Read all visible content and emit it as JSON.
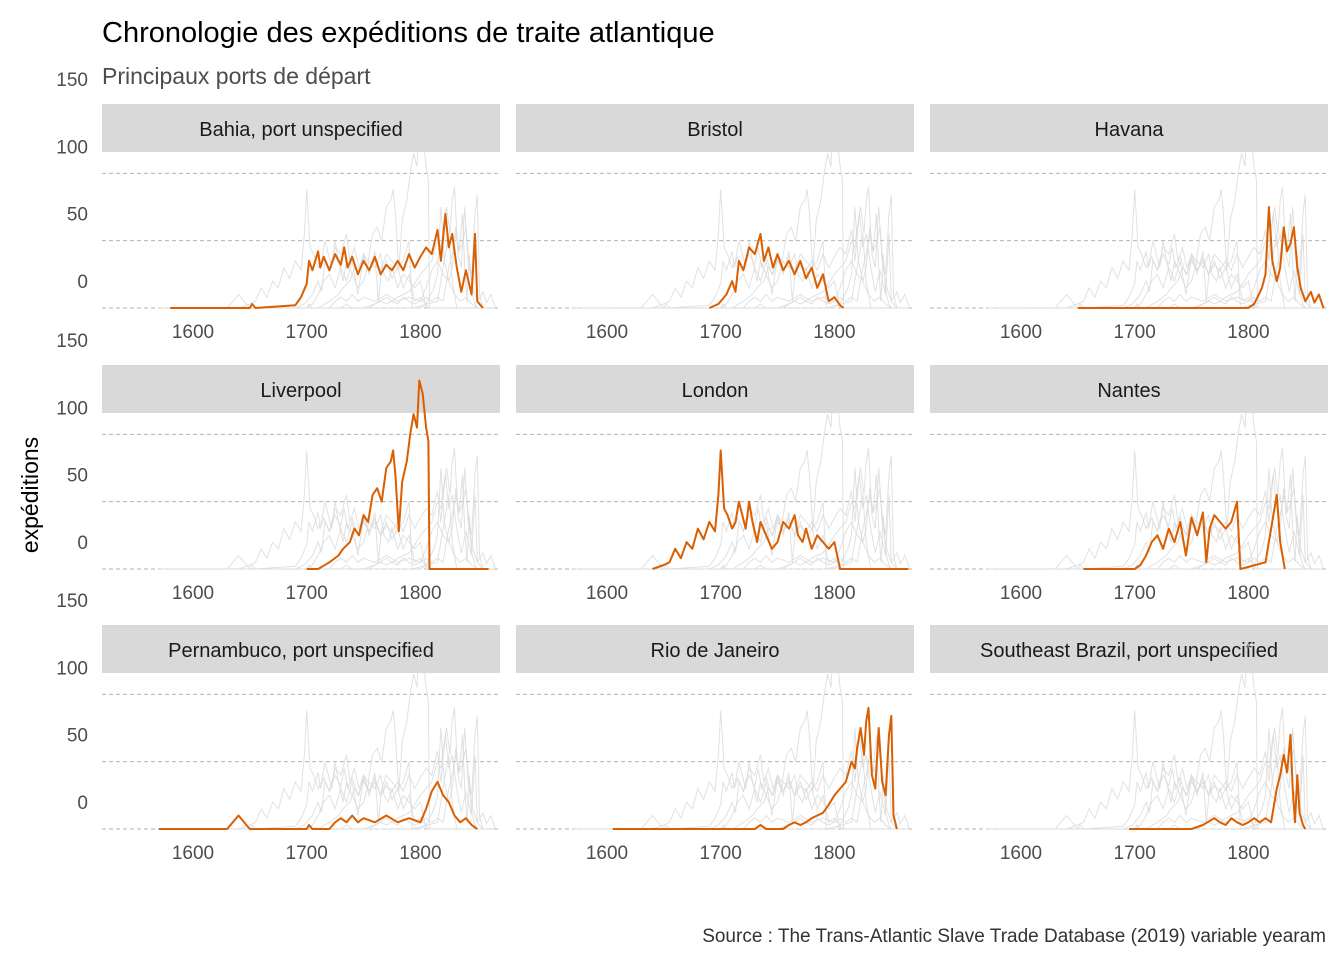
{
  "chart_data": {
    "type": "line",
    "title": "Chronologie des expéditions de traite atlantique",
    "subtitle": "Principaux ports de départ",
    "ylabel": "expéditions",
    "xlabel": "",
    "caption": "Source : The Trans-Atlantic Slave Trade Database (2019) variable yearam",
    "xlim": [
      1520,
      1870
    ],
    "ylim": [
      0,
      150
    ],
    "x_ticks": [
      1600,
      1700,
      1800
    ],
    "y_ticks": [
      0,
      50,
      100,
      150
    ],
    "grid": "dashed horizontal",
    "colors": {
      "highlight": "#d95f02",
      "context": "#d9d9d9",
      "strip": "#d9d9d9"
    },
    "facets": [
      {
        "name": "Bahia, port unspecified",
        "points": [
          [
            1580,
            0
          ],
          [
            1650,
            0
          ],
          [
            1652,
            3
          ],
          [
            1655,
            0
          ],
          [
            1690,
            2
          ],
          [
            1695,
            8
          ],
          [
            1700,
            18
          ],
          [
            1702,
            35
          ],
          [
            1705,
            28
          ],
          [
            1710,
            42
          ],
          [
            1712,
            30
          ],
          [
            1715,
            38
          ],
          [
            1720,
            28
          ],
          [
            1725,
            40
          ],
          [
            1730,
            32
          ],
          [
            1733,
            45
          ],
          [
            1736,
            30
          ],
          [
            1740,
            38
          ],
          [
            1745,
            25
          ],
          [
            1750,
            35
          ],
          [
            1755,
            28
          ],
          [
            1760,
            38
          ],
          [
            1765,
            25
          ],
          [
            1770,
            32
          ],
          [
            1775,
            28
          ],
          [
            1780,
            35
          ],
          [
            1785,
            28
          ],
          [
            1790,
            40
          ],
          [
            1795,
            30
          ],
          [
            1800,
            38
          ],
          [
            1805,
            45
          ],
          [
            1810,
            40
          ],
          [
            1815,
            58
          ],
          [
            1818,
            35
          ],
          [
            1822,
            70
          ],
          [
            1825,
            45
          ],
          [
            1828,
            55
          ],
          [
            1832,
            30
          ],
          [
            1836,
            12
          ],
          [
            1840,
            28
          ],
          [
            1845,
            10
          ],
          [
            1848,
            55
          ],
          [
            1850,
            5
          ],
          [
            1855,
            0
          ]
        ]
      },
      {
        "name": "Bristol",
        "points": [
          [
            1690,
            0
          ],
          [
            1698,
            3
          ],
          [
            1705,
            10
          ],
          [
            1710,
            20
          ],
          [
            1713,
            12
          ],
          [
            1716,
            35
          ],
          [
            1720,
            28
          ],
          [
            1725,
            45
          ],
          [
            1730,
            40
          ],
          [
            1735,
            55
          ],
          [
            1738,
            35
          ],
          [
            1742,
            45
          ],
          [
            1746,
            30
          ],
          [
            1750,
            40
          ],
          [
            1755,
            28
          ],
          [
            1760,
            35
          ],
          [
            1765,
            25
          ],
          [
            1770,
            35
          ],
          [
            1775,
            22
          ],
          [
            1780,
            30
          ],
          [
            1785,
            15
          ],
          [
            1790,
            25
          ],
          [
            1795,
            5
          ],
          [
            1800,
            8
          ],
          [
            1805,
            2
          ],
          [
            1808,
            0
          ]
        ]
      },
      {
        "name": "Havana",
        "points": [
          [
            1650,
            0
          ],
          [
            1700,
            0
          ],
          [
            1750,
            0
          ],
          [
            1800,
            0
          ],
          [
            1805,
            3
          ],
          [
            1808,
            8
          ],
          [
            1812,
            15
          ],
          [
            1815,
            25
          ],
          [
            1818,
            75
          ],
          [
            1821,
            35
          ],
          [
            1825,
            20
          ],
          [
            1828,
            30
          ],
          [
            1831,
            60
          ],
          [
            1834,
            42
          ],
          [
            1837,
            48
          ],
          [
            1840,
            60
          ],
          [
            1843,
            30
          ],
          [
            1846,
            15
          ],
          [
            1850,
            5
          ],
          [
            1855,
            12
          ],
          [
            1858,
            4
          ],
          [
            1862,
            10
          ],
          [
            1866,
            0
          ]
        ]
      },
      {
        "name": "Liverpool",
        "points": [
          [
            1700,
            0
          ],
          [
            1710,
            0
          ],
          [
            1720,
            5
          ],
          [
            1728,
            10
          ],
          [
            1732,
            15
          ],
          [
            1738,
            20
          ],
          [
            1742,
            30
          ],
          [
            1746,
            25
          ],
          [
            1750,
            40
          ],
          [
            1754,
            35
          ],
          [
            1758,
            55
          ],
          [
            1762,
            60
          ],
          [
            1766,
            50
          ],
          [
            1770,
            75
          ],
          [
            1774,
            80
          ],
          [
            1776,
            88
          ],
          [
            1778,
            70
          ],
          [
            1781,
            28
          ],
          [
            1784,
            65
          ],
          [
            1788,
            80
          ],
          [
            1791,
            100
          ],
          [
            1794,
            115
          ],
          [
            1797,
            105
          ],
          [
            1799,
            140
          ],
          [
            1802,
            130
          ],
          [
            1805,
            105
          ],
          [
            1807,
            95
          ],
          [
            1808,
            0
          ],
          [
            1860,
            0
          ]
        ]
      },
      {
        "name": "London",
        "points": [
          [
            1640,
            0
          ],
          [
            1650,
            3
          ],
          [
            1655,
            5
          ],
          [
            1660,
            15
          ],
          [
            1665,
            8
          ],
          [
            1670,
            20
          ],
          [
            1675,
            15
          ],
          [
            1680,
            30
          ],
          [
            1685,
            22
          ],
          [
            1690,
            35
          ],
          [
            1695,
            28
          ],
          [
            1698,
            55
          ],
          [
            1700,
            88
          ],
          [
            1703,
            45
          ],
          [
            1706,
            40
          ],
          [
            1710,
            30
          ],
          [
            1713,
            35
          ],
          [
            1716,
            50
          ],
          [
            1719,
            40
          ],
          [
            1722,
            30
          ],
          [
            1725,
            50
          ],
          [
            1728,
            35
          ],
          [
            1732,
            20
          ],
          [
            1735,
            35
          ],
          [
            1740,
            25
          ],
          [
            1745,
            15
          ],
          [
            1750,
            20
          ],
          [
            1755,
            35
          ],
          [
            1760,
            30
          ],
          [
            1765,
            40
          ],
          [
            1768,
            25
          ],
          [
            1772,
            20
          ],
          [
            1775,
            30
          ],
          [
            1780,
            15
          ],
          [
            1785,
            25
          ],
          [
            1790,
            20
          ],
          [
            1795,
            15
          ],
          [
            1800,
            20
          ],
          [
            1805,
            0
          ],
          [
            1865,
            0
          ]
        ]
      },
      {
        "name": "Nantes",
        "points": [
          [
            1655,
            0
          ],
          [
            1700,
            0
          ],
          [
            1705,
            3
          ],
          [
            1710,
            10
          ],
          [
            1715,
            20
          ],
          [
            1720,
            25
          ],
          [
            1725,
            15
          ],
          [
            1730,
            30
          ],
          [
            1735,
            20
          ],
          [
            1740,
            35
          ],
          [
            1745,
            10
          ],
          [
            1750,
            38
          ],
          [
            1755,
            25
          ],
          [
            1760,
            42
          ],
          [
            1763,
            5
          ],
          [
            1766,
            30
          ],
          [
            1770,
            40
          ],
          [
            1775,
            35
          ],
          [
            1780,
            30
          ],
          [
            1785,
            35
          ],
          [
            1790,
            50
          ],
          [
            1793,
            0
          ],
          [
            1815,
            5
          ],
          [
            1820,
            30
          ],
          [
            1825,
            55
          ],
          [
            1828,
            20
          ],
          [
            1832,
            0
          ]
        ]
      },
      {
        "name": "Pernambuco, port unspecified",
        "points": [
          [
            1570,
            0
          ],
          [
            1630,
            0
          ],
          [
            1635,
            5
          ],
          [
            1640,
            10
          ],
          [
            1645,
            5
          ],
          [
            1650,
            0
          ],
          [
            1700,
            0
          ],
          [
            1702,
            3
          ],
          [
            1705,
            0
          ],
          [
            1720,
            0
          ],
          [
            1725,
            5
          ],
          [
            1730,
            8
          ],
          [
            1735,
            5
          ],
          [
            1740,
            10
          ],
          [
            1745,
            5
          ],
          [
            1750,
            8
          ],
          [
            1760,
            5
          ],
          [
            1770,
            10
          ],
          [
            1780,
            5
          ],
          [
            1790,
            8
          ],
          [
            1800,
            5
          ],
          [
            1805,
            15
          ],
          [
            1810,
            28
          ],
          [
            1815,
            35
          ],
          [
            1820,
            25
          ],
          [
            1825,
            20
          ],
          [
            1830,
            10
          ],
          [
            1835,
            5
          ],
          [
            1840,
            8
          ],
          [
            1845,
            3
          ],
          [
            1850,
            0
          ]
        ]
      },
      {
        "name": "Rio de Janeiro",
        "points": [
          [
            1605,
            0
          ],
          [
            1700,
            0
          ],
          [
            1730,
            0
          ],
          [
            1735,
            3
          ],
          [
            1740,
            0
          ],
          [
            1755,
            0
          ],
          [
            1760,
            3
          ],
          [
            1765,
            5
          ],
          [
            1770,
            3
          ],
          [
            1775,
            5
          ],
          [
            1780,
            8
          ],
          [
            1785,
            10
          ],
          [
            1790,
            12
          ],
          [
            1795,
            18
          ],
          [
            1800,
            25
          ],
          [
            1805,
            30
          ],
          [
            1810,
            35
          ],
          [
            1815,
            50
          ],
          [
            1818,
            45
          ],
          [
            1820,
            60
          ],
          [
            1823,
            75
          ],
          [
            1826,
            55
          ],
          [
            1828,
            80
          ],
          [
            1830,
            90
          ],
          [
            1833,
            40
          ],
          [
            1836,
            30
          ],
          [
            1839,
            75
          ],
          [
            1842,
            35
          ],
          [
            1845,
            25
          ],
          [
            1848,
            70
          ],
          [
            1850,
            84
          ],
          [
            1852,
            10
          ],
          [
            1855,
            0
          ]
        ]
      },
      {
        "name": "Southeast Brazil, port unspecified",
        "points": [
          [
            1695,
            0
          ],
          [
            1750,
            0
          ],
          [
            1760,
            3
          ],
          [
            1770,
            8
          ],
          [
            1775,
            5
          ],
          [
            1780,
            3
          ],
          [
            1785,
            8
          ],
          [
            1790,
            5
          ],
          [
            1795,
            3
          ],
          [
            1800,
            5
          ],
          [
            1805,
            8
          ],
          [
            1810,
            5
          ],
          [
            1815,
            8
          ],
          [
            1820,
            5
          ],
          [
            1825,
            30
          ],
          [
            1828,
            40
          ],
          [
            1831,
            55
          ],
          [
            1834,
            42
          ],
          [
            1837,
            70
          ],
          [
            1839,
            30
          ],
          [
            1841,
            5
          ],
          [
            1843,
            40
          ],
          [
            1845,
            12
          ],
          [
            1848,
            3
          ],
          [
            1850,
            0
          ]
        ]
      }
    ]
  }
}
